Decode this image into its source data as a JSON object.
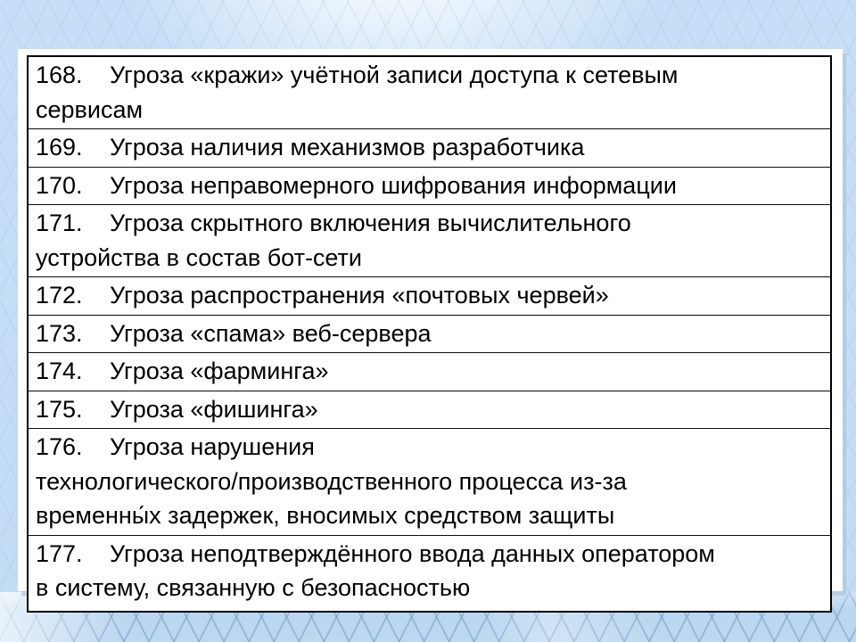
{
  "slide": {
    "kind": "presentation-slide",
    "colors": {
      "background": "#c6dff6",
      "bottom_band": "#b9d5ee",
      "grid_line": "#7ea2ca",
      "panel": "#ffffff",
      "table_border": "#000000",
      "text": "#000000"
    },
    "table": {
      "rows": [
        {
          "num": "168.",
          "text": "Угроза «кражи» учётной записи доступа к сетевым\nсервисам"
        },
        {
          "num": "169.",
          "text": "Угроза наличия механизмов разработчика"
        },
        {
          "num": "170.",
          "text": "Угроза неправомерного шифрования информации"
        },
        {
          "num": "171.",
          "text": "Угроза скрытного включения вычислительного\nустройства в состав бот-сети"
        },
        {
          "num": "172.",
          "text": "Угроза распространения «почтовых червей»"
        },
        {
          "num": "173.",
          "text": "Угроза «спама» веб-сервера"
        },
        {
          "num": "174.",
          "text": "Угроза «фарминга»"
        },
        {
          "num": "175.",
          "text": "Угроза «фишинга»"
        },
        {
          "num": "176.",
          "text": "Угроза нарушения\nтехнологического/производственного процесса из-за\nвременны́х задержек, вносимых средством защиты"
        },
        {
          "num": "177.",
          "text": "Угроза неподтверждённого ввода данных оператором\nв систему, связанную с безопасностью"
        }
      ]
    }
  }
}
